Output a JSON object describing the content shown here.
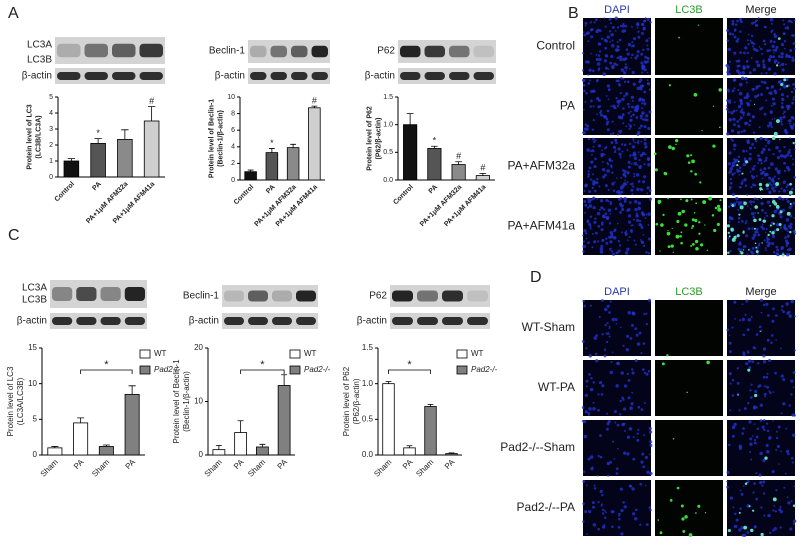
{
  "panel_labels": [
    "A",
    "B",
    "C",
    "D"
  ],
  "blots": [
    {
      "labels": [
        "LC3A",
        "LC3B"
      ],
      "control": "β-actin"
    },
    {
      "labels": [
        "Beclin-1"
      ],
      "control": "β-actin"
    },
    {
      "labels": [
        "P62"
      ],
      "control": "β-actin"
    },
    {
      "labels": [
        "LC3A",
        "LC3B"
      ],
      "control": "β-actin"
    },
    {
      "labels": [
        "Beclin-1"
      ],
      "control": "β-actin"
    },
    {
      "labels": [
        "P62"
      ],
      "control": "β-actin"
    }
  ],
  "microscopy": [
    {
      "columns": [
        "DAPI",
        "LC3B",
        "Merge"
      ],
      "rows": [
        "Control",
        "PA",
        "PA+AFM32a",
        "PA+AFM41a"
      ]
    },
    {
      "columns": [
        "DAPI",
        "LC3B",
        "Merge"
      ],
      "rows": [
        "WT-Sham",
        "WT-PA",
        "Pad2-/--Sham",
        "Pad2-/--PA"
      ]
    }
  ],
  "chart_data": [
    {
      "type": "bar",
      "ylabel": [
        "Protein level of LC3",
        "(LC3B/LC3A)"
      ],
      "categories": [
        "Control",
        "PA",
        "PA+1μM AFM32a",
        "PA+1μM AFM41a"
      ],
      "values": [
        1.0,
        2.1,
        2.35,
        3.5
      ],
      "errors": [
        0.15,
        0.3,
        0.6,
        0.9
      ],
      "bar_labels": [
        null,
        "*",
        null,
        "#"
      ],
      "colors": [
        "#111111",
        "#555555",
        "#8a8a8a",
        "#cfcfcf"
      ],
      "ylim": [
        0,
        5
      ],
      "yticks": [
        0,
        1,
        2,
        3,
        4,
        5
      ]
    },
    {
      "type": "bar",
      "ylabel": [
        "Protein level of Beclin-1",
        "(Beclin-1/β-actin)"
      ],
      "categories": [
        "Control",
        "PA",
        "PA+1μM AFM32a",
        "PA+1μM AFM41a"
      ],
      "values": [
        1.0,
        3.3,
        3.9,
        8.7
      ],
      "errors": [
        0.2,
        0.5,
        0.4,
        0.2
      ],
      "bar_labels": [
        null,
        "*",
        null,
        "#"
      ],
      "colors": [
        "#111111",
        "#555555",
        "#8a8a8a",
        "#cfcfcf"
      ],
      "ylim": [
        0,
        10
      ],
      "yticks": [
        0,
        2,
        4,
        6,
        8,
        10
      ]
    },
    {
      "type": "bar",
      "ylabel": [
        "Protein level of P62",
        "(P62/β-actin)"
      ],
      "categories": [
        "Control",
        "PA",
        "PA+1μM AFM32a",
        "PA+1μM AFM41a"
      ],
      "values": [
        1.0,
        0.57,
        0.28,
        0.08
      ],
      "errors": [
        0.2,
        0.04,
        0.05,
        0.04
      ],
      "bar_labels": [
        null,
        "*",
        "#",
        "#"
      ],
      "colors": [
        "#111111",
        "#555555",
        "#8a8a8a",
        "#cfcfcf"
      ],
      "ylim": [
        0,
        1.5
      ],
      "yticks": [
        {
          "value": 0,
          "label": "0.0"
        },
        {
          "value": 0.5,
          "label": "0.5"
        },
        {
          "value": 1,
          "label": "1.0"
        },
        {
          "value": 1.5,
          "label": "1.5"
        }
      ]
    },
    {
      "type": "grouped",
      "ylabel": [
        "Protein level of LC3",
        "(LC3A/LC3B)"
      ],
      "categories": [
        "Sham",
        "PA",
        "Sham",
        "PA"
      ],
      "series": [
        {
          "name": "WT",
          "color": "#ffffff",
          "values": [
            1.0,
            4.5,
            null,
            null
          ],
          "errors": [
            0.2,
            0.7,
            null,
            null
          ]
        },
        {
          "name": "Pad2-/-",
          "color": "#808080",
          "values": [
            null,
            null,
            1.2,
            8.5
          ],
          "errors": [
            null,
            null,
            0.2,
            1.2
          ]
        }
      ],
      "annotation": "*",
      "ylim": [
        0,
        15
      ],
      "yticks": [
        0,
        5,
        10,
        15
      ]
    },
    {
      "type": "grouped",
      "ylabel": [
        "Protein level of Beclin-1",
        "(Beclin-1/β-actin)"
      ],
      "categories": [
        "Sham",
        "PA",
        "Sham",
        "PA"
      ],
      "series": [
        {
          "name": "WT",
          "color": "#ffffff",
          "values": [
            1.0,
            4.2,
            null,
            null
          ],
          "errors": [
            0.8,
            2.2,
            null,
            null
          ]
        },
        {
          "name": "Pad2-/-",
          "color": "#808080",
          "values": [
            null,
            null,
            1.5,
            13
          ],
          "errors": [
            null,
            null,
            0.5,
            2
          ]
        }
      ],
      "annotation": "*",
      "ylim": [
        0,
        20
      ],
      "yticks": [
        0,
        10,
        20
      ]
    },
    {
      "type": "grouped",
      "ylabel": [
        "Protein level of P62",
        "(P62/β-actin)"
      ],
      "categories": [
        "Sham",
        "PA",
        "Sham",
        "PA"
      ],
      "series": [
        {
          "name": "WT",
          "color": "#ffffff",
          "values": [
            1.0,
            0.1,
            null,
            null
          ],
          "errors": [
            0.03,
            0.03,
            null,
            null
          ]
        },
        {
          "name": "Pad2-/-",
          "color": "#808080",
          "values": [
            null,
            null,
            0.68,
            0.02
          ],
          "errors": [
            null,
            null,
            0.03,
            0.01
          ]
        }
      ],
      "annotation": "*",
      "ylim": [
        0,
        1.5
      ],
      "yticks": [
        {
          "value": 0,
          "label": "0.0"
        },
        {
          "value": 0.5,
          "label": "0.5"
        },
        {
          "value": 1,
          "label": "1.0"
        },
        {
          "value": 1.5,
          "label": "1.5"
        }
      ]
    }
  ]
}
